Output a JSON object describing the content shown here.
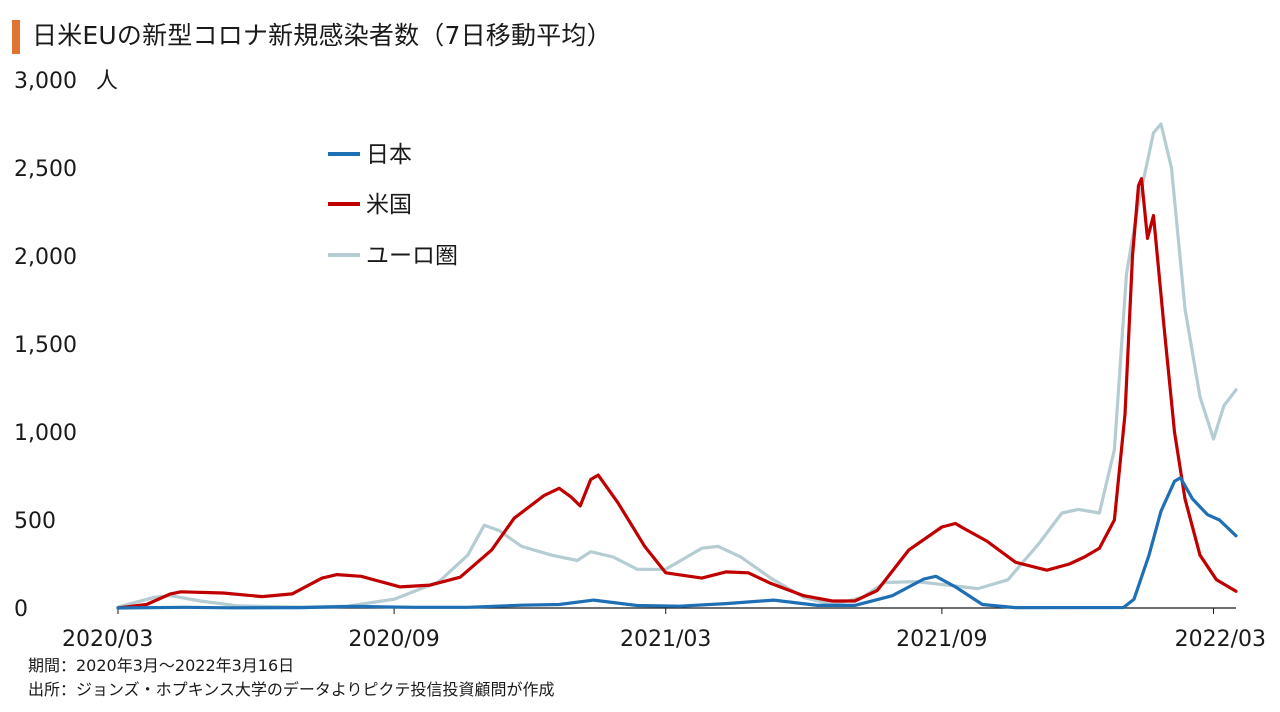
{
  "title": "日米EUの新型コロナ新規感染者数（7日移動平均）",
  "accent_color": "#e0742f",
  "footnotes": {
    "period": "期間：2020年3月～2022年3月16日",
    "source": "出所：ジョンズ・ホプキンス大学のデータよりピクテ投信投資顧問が作成"
  },
  "chart_data": {
    "type": "line",
    "title": "日米EUの新型コロナ新規感染者数（7日移動平均）",
    "ylabel": "",
    "y_unit": "人",
    "ylim": [
      0,
      3000
    ],
    "yticks": [
      0,
      500,
      1000,
      1500,
      2000,
      2500,
      3000
    ],
    "ytick_labels": [
      "0",
      "500",
      "1,000",
      "1,500",
      "2,000",
      "2,500",
      "3,000"
    ],
    "xlim": [
      "2020-03-01",
      "2022-03-16"
    ],
    "xtick_labels": [
      {
        "label": "2020/03",
        "date": "2020-03-01"
      },
      {
        "label": "2020/09",
        "date": "2020-09-01"
      },
      {
        "label": "2021/03",
        "date": "2021-03-01"
      },
      {
        "label": "2021/09",
        "date": "2021-09-01"
      },
      {
        "label": "2022/03",
        "date": "2022-03-01"
      }
    ],
    "grid": false,
    "legend_position": "top-left",
    "series": [
      {
        "name": "日本",
        "color": "#1f6fb5",
        "points": [
          [
            "2020-03-01",
            0
          ],
          [
            "2020-04-15",
            4
          ],
          [
            "2020-05-15",
            1
          ],
          [
            "2020-07-01",
            2
          ],
          [
            "2020-08-05",
            9
          ],
          [
            "2020-09-15",
            4
          ],
          [
            "2020-10-20",
            4
          ],
          [
            "2020-11-25",
            16
          ],
          [
            "2020-12-20",
            20
          ],
          [
            "2021-01-12",
            45
          ],
          [
            "2021-02-10",
            14
          ],
          [
            "2021-03-10",
            10
          ],
          [
            "2021-04-10",
            25
          ],
          [
            "2021-05-12",
            45
          ],
          [
            "2021-06-10",
            15
          ],
          [
            "2021-07-05",
            15
          ],
          [
            "2021-07-30",
            70
          ],
          [
            "2021-08-20",
            165
          ],
          [
            "2021-08-28",
            180
          ],
          [
            "2021-09-10",
            120
          ],
          [
            "2021-09-28",
            20
          ],
          [
            "2021-10-20",
            2
          ],
          [
            "2021-12-31",
            3
          ],
          [
            "2022-01-07",
            50
          ],
          [
            "2022-01-17",
            300
          ],
          [
            "2022-01-25",
            550
          ],
          [
            "2022-02-03",
            720
          ],
          [
            "2022-02-07",
            740
          ],
          [
            "2022-02-15",
            620
          ],
          [
            "2022-02-25",
            530
          ],
          [
            "2022-03-05",
            500
          ],
          [
            "2022-03-16",
            410
          ]
        ]
      },
      {
        "name": "米国",
        "color": "#c00000",
        "points": [
          [
            "2020-03-01",
            0
          ],
          [
            "2020-03-20",
            20
          ],
          [
            "2020-04-05",
            80
          ],
          [
            "2020-04-12",
            92
          ],
          [
            "2020-05-10",
            85
          ],
          [
            "2020-06-05",
            65
          ],
          [
            "2020-06-25",
            80
          ],
          [
            "2020-07-15",
            170
          ],
          [
            "2020-07-25",
            190
          ],
          [
            "2020-08-10",
            180
          ],
          [
            "2020-09-05",
            120
          ],
          [
            "2020-09-25",
            130
          ],
          [
            "2020-10-15",
            175
          ],
          [
            "2020-11-05",
            330
          ],
          [
            "2020-11-20",
            510
          ],
          [
            "2020-12-10",
            640
          ],
          [
            "2020-12-20",
            680
          ],
          [
            "2020-12-28",
            630
          ],
          [
            "2021-01-03",
            580
          ],
          [
            "2021-01-10",
            730
          ],
          [
            "2021-01-15",
            755
          ],
          [
            "2021-01-28",
            600
          ],
          [
            "2021-02-15",
            350
          ],
          [
            "2021-03-01",
            200
          ],
          [
            "2021-03-25",
            170
          ],
          [
            "2021-04-10",
            205
          ],
          [
            "2021-04-25",
            200
          ],
          [
            "2021-05-10",
            140
          ],
          [
            "2021-06-01",
            70
          ],
          [
            "2021-06-20",
            40
          ],
          [
            "2021-07-05",
            40
          ],
          [
            "2021-07-20",
            100
          ],
          [
            "2021-08-10",
            330
          ],
          [
            "2021-09-01",
            460
          ],
          [
            "2021-09-10",
            480
          ],
          [
            "2021-09-15",
            455
          ],
          [
            "2021-10-01",
            380
          ],
          [
            "2021-10-20",
            260
          ],
          [
            "2021-11-10",
            215
          ],
          [
            "2021-11-25",
            250
          ],
          [
            "2021-12-05",
            290
          ],
          [
            "2021-12-15",
            340
          ],
          [
            "2021-12-25",
            500
          ],
          [
            "2022-01-01",
            1100
          ],
          [
            "2022-01-06",
            2000
          ],
          [
            "2022-01-10",
            2400
          ],
          [
            "2022-01-12",
            2440
          ],
          [
            "2022-01-16",
            2100
          ],
          [
            "2022-01-20",
            2230
          ],
          [
            "2022-01-27",
            1600
          ],
          [
            "2022-02-03",
            1000
          ],
          [
            "2022-02-10",
            620
          ],
          [
            "2022-02-20",
            300
          ],
          [
            "2022-03-03",
            160
          ],
          [
            "2022-03-16",
            95
          ]
        ]
      },
      {
        "name": "ユーロ圏",
        "color": "#b4ccd2",
        "points": [
          [
            "2020-03-01",
            5
          ],
          [
            "2020-03-25",
            60
          ],
          [
            "2020-04-05",
            70
          ],
          [
            "2020-04-25",
            40
          ],
          [
            "2020-05-20",
            12
          ],
          [
            "2020-07-01",
            5
          ],
          [
            "2020-08-01",
            10
          ],
          [
            "2020-09-01",
            50
          ],
          [
            "2020-10-01",
            150
          ],
          [
            "2020-10-20",
            300
          ],
          [
            "2020-10-31",
            470
          ],
          [
            "2020-11-10",
            440
          ],
          [
            "2020-11-25",
            350
          ],
          [
            "2020-12-15",
            300
          ],
          [
            "2021-01-01",
            270
          ],
          [
            "2021-01-10",
            320
          ],
          [
            "2021-01-25",
            290
          ],
          [
            "2021-02-10",
            220
          ],
          [
            "2021-03-01",
            220
          ],
          [
            "2021-03-25",
            340
          ],
          [
            "2021-04-05",
            350
          ],
          [
            "2021-04-20",
            290
          ],
          [
            "2021-05-10",
            170
          ],
          [
            "2021-06-01",
            60
          ],
          [
            "2021-06-20",
            20
          ],
          [
            "2021-07-10",
            60
          ],
          [
            "2021-07-25",
            145
          ],
          [
            "2021-08-15",
            150
          ],
          [
            "2021-09-05",
            130
          ],
          [
            "2021-09-25",
            110
          ],
          [
            "2021-10-15",
            160
          ],
          [
            "2021-11-05",
            370
          ],
          [
            "2021-11-20",
            540
          ],
          [
            "2021-12-01",
            560
          ],
          [
            "2021-12-15",
            540
          ],
          [
            "2021-12-25",
            900
          ],
          [
            "2022-01-02",
            1900
          ],
          [
            "2022-01-10",
            2300
          ],
          [
            "2022-01-20",
            2700
          ],
          [
            "2022-01-25",
            2750
          ],
          [
            "2022-02-01",
            2500
          ],
          [
            "2022-02-10",
            1700
          ],
          [
            "2022-02-20",
            1200
          ],
          [
            "2022-03-01",
            960
          ],
          [
            "2022-03-08",
            1150
          ],
          [
            "2022-03-16",
            1240
          ]
        ]
      }
    ]
  }
}
